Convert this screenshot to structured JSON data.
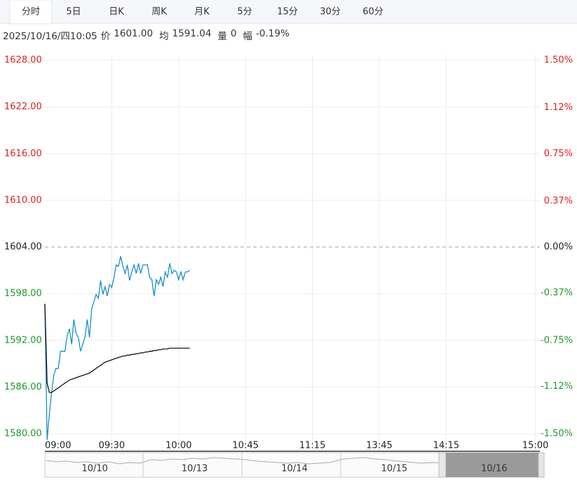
{
  "tabs": [
    "分时",
    "5日",
    "日K",
    "周K",
    "月K",
    "5分",
    "15分",
    "30分",
    "60分"
  ],
  "selected_tab": 0,
  "info": {
    "datetime": "2025/10/16/四10:05",
    "fields": [
      {
        "label": "价",
        "value": "1601.00"
      },
      {
        "label": "均",
        "value": "1591.04"
      },
      {
        "label": "量",
        "value": "0"
      },
      {
        "label": "幅",
        "value": "-0.19%"
      }
    ]
  },
  "chart_data": {
    "type": "line",
    "x": [
      0,
      1,
      2,
      3,
      4,
      5,
      6,
      7,
      8,
      9,
      10,
      11,
      12,
      13,
      14,
      15,
      16,
      17,
      18,
      19,
      20,
      21,
      22,
      23,
      24,
      25,
      26,
      27,
      28,
      29,
      30,
      31,
      32,
      33,
      34,
      35,
      36,
      37,
      38,
      39,
      40,
      41,
      42,
      43,
      44,
      45,
      46,
      47,
      48,
      49,
      50,
      51,
      52,
      53,
      54,
      55,
      56,
      57,
      58,
      59,
      60,
      61,
      62,
      63,
      64,
      65
    ],
    "series": [
      {
        "name": "价",
        "color": "#1a8fc8",
        "values": [
          1596.7,
          1579.2,
          1582.5,
          1585.2,
          1587.5,
          1588.4,
          1588.4,
          1590.6,
          1590.6,
          1590.6,
          1592.6,
          1593.5,
          1591.5,
          1594.7,
          1592.9,
          1592.4,
          1590.6,
          1591.5,
          1592.4,
          1594.7,
          1592.4,
          1596.1,
          1597.0,
          1597.9,
          1597.4,
          1599.7,
          1597.9,
          1598.9,
          1597.7,
          1599.2,
          1598.8,
          1600.1,
          1601.7,
          1601.5,
          1602.8,
          1601.5,
          1600.6,
          1601.7,
          1599.7,
          1600.8,
          1601.7,
          1600.6,
          1601.9,
          1600.6,
          1601.7,
          1601.7,
          1601.7,
          1600.1,
          1599.8,
          1597.7,
          1599.8,
          1599.2,
          1600.1,
          1598.9,
          1600.8,
          1600.1,
          1601.9,
          1600.6,
          1601.0,
          1600.8,
          1599.8,
          1600.8,
          1599.8,
          1600.8,
          1600.8,
          1601.0
        ]
      },
      {
        "name": "均",
        "color": "#111111",
        "values": [
          1596.7,
          1586.5,
          1585.3,
          1585.3,
          1585.5,
          1585.7,
          1585.9,
          1586.1,
          1586.3,
          1586.5,
          1586.7,
          1586.9,
          1587.0,
          1587.1,
          1587.2,
          1587.3,
          1587.4,
          1587.5,
          1587.6,
          1587.7,
          1587.8,
          1588.0,
          1588.2,
          1588.4,
          1588.6,
          1588.8,
          1589.0,
          1589.2,
          1589.3,
          1589.4,
          1589.5,
          1589.6,
          1589.7,
          1589.8,
          1589.9,
          1590.0,
          1590.0,
          1590.1,
          1590.1,
          1590.2,
          1590.2,
          1590.3,
          1590.3,
          1590.4,
          1590.4,
          1590.5,
          1590.5,
          1590.6,
          1590.6,
          1590.7,
          1590.7,
          1590.8,
          1590.8,
          1590.9,
          1590.9,
          1590.9,
          1591.0,
          1591.0,
          1591.0,
          1591.0,
          1591.0,
          1591.0,
          1591.0,
          1591.0,
          1591.0,
          1591.0
        ]
      }
    ],
    "xlim": [
      0,
      222
    ],
    "xticks": [
      {
        "value": 0,
        "label": "09:00"
      },
      {
        "value": 30,
        "label": "09:30"
      },
      {
        "value": 60,
        "label": "10:00"
      },
      {
        "value": 90,
        "label": "10:45"
      },
      {
        "value": 120,
        "label": "11:15"
      },
      {
        "value": 150,
        "label": "13:45"
      },
      {
        "value": 180,
        "label": "14:15"
      },
      {
        "value": 220,
        "label": "15:00"
      }
    ],
    "ylim": [
      1580,
      1628
    ],
    "yticks": [
      {
        "value": 1628,
        "label": "1628.00"
      },
      {
        "value": 1622,
        "label": "1622.00"
      },
      {
        "value": 1616,
        "label": "1616.00"
      },
      {
        "value": 1610,
        "label": "1610.00"
      },
      {
        "value": 1604,
        "label": "1604.00"
      },
      {
        "value": 1598,
        "label": "1598.00"
      },
      {
        "value": 1592,
        "label": "1592.00"
      },
      {
        "value": 1586,
        "label": "1586.00"
      },
      {
        "value": 1580,
        "label": "1580.00"
      }
    ],
    "y2lim": [
      -1.5,
      1.5
    ],
    "y2ticks": [
      {
        "value": 1.5,
        "label": "1.50%"
      },
      {
        "value": 1.12,
        "label": "1.12%"
      },
      {
        "value": 0.75,
        "label": "0.75%"
      },
      {
        "value": 0.37,
        "label": "0.37%"
      },
      {
        "value": 0,
        "label": "0.00%"
      },
      {
        "value": -0.37,
        "label": "-0.37%"
      },
      {
        "value": -0.75,
        "label": "-0.75%"
      },
      {
        "value": -1.12,
        "label": "-1.12%"
      },
      {
        "value": -1.5,
        "label": "-1.50%"
      }
    ],
    "up_color": "#e0201a",
    "down_color": "#1a9a2a",
    "grid": true
  },
  "navigator": {
    "dates": [
      "10/10",
      "10/13",
      "10/14",
      "10/15",
      "10/16"
    ]
  }
}
